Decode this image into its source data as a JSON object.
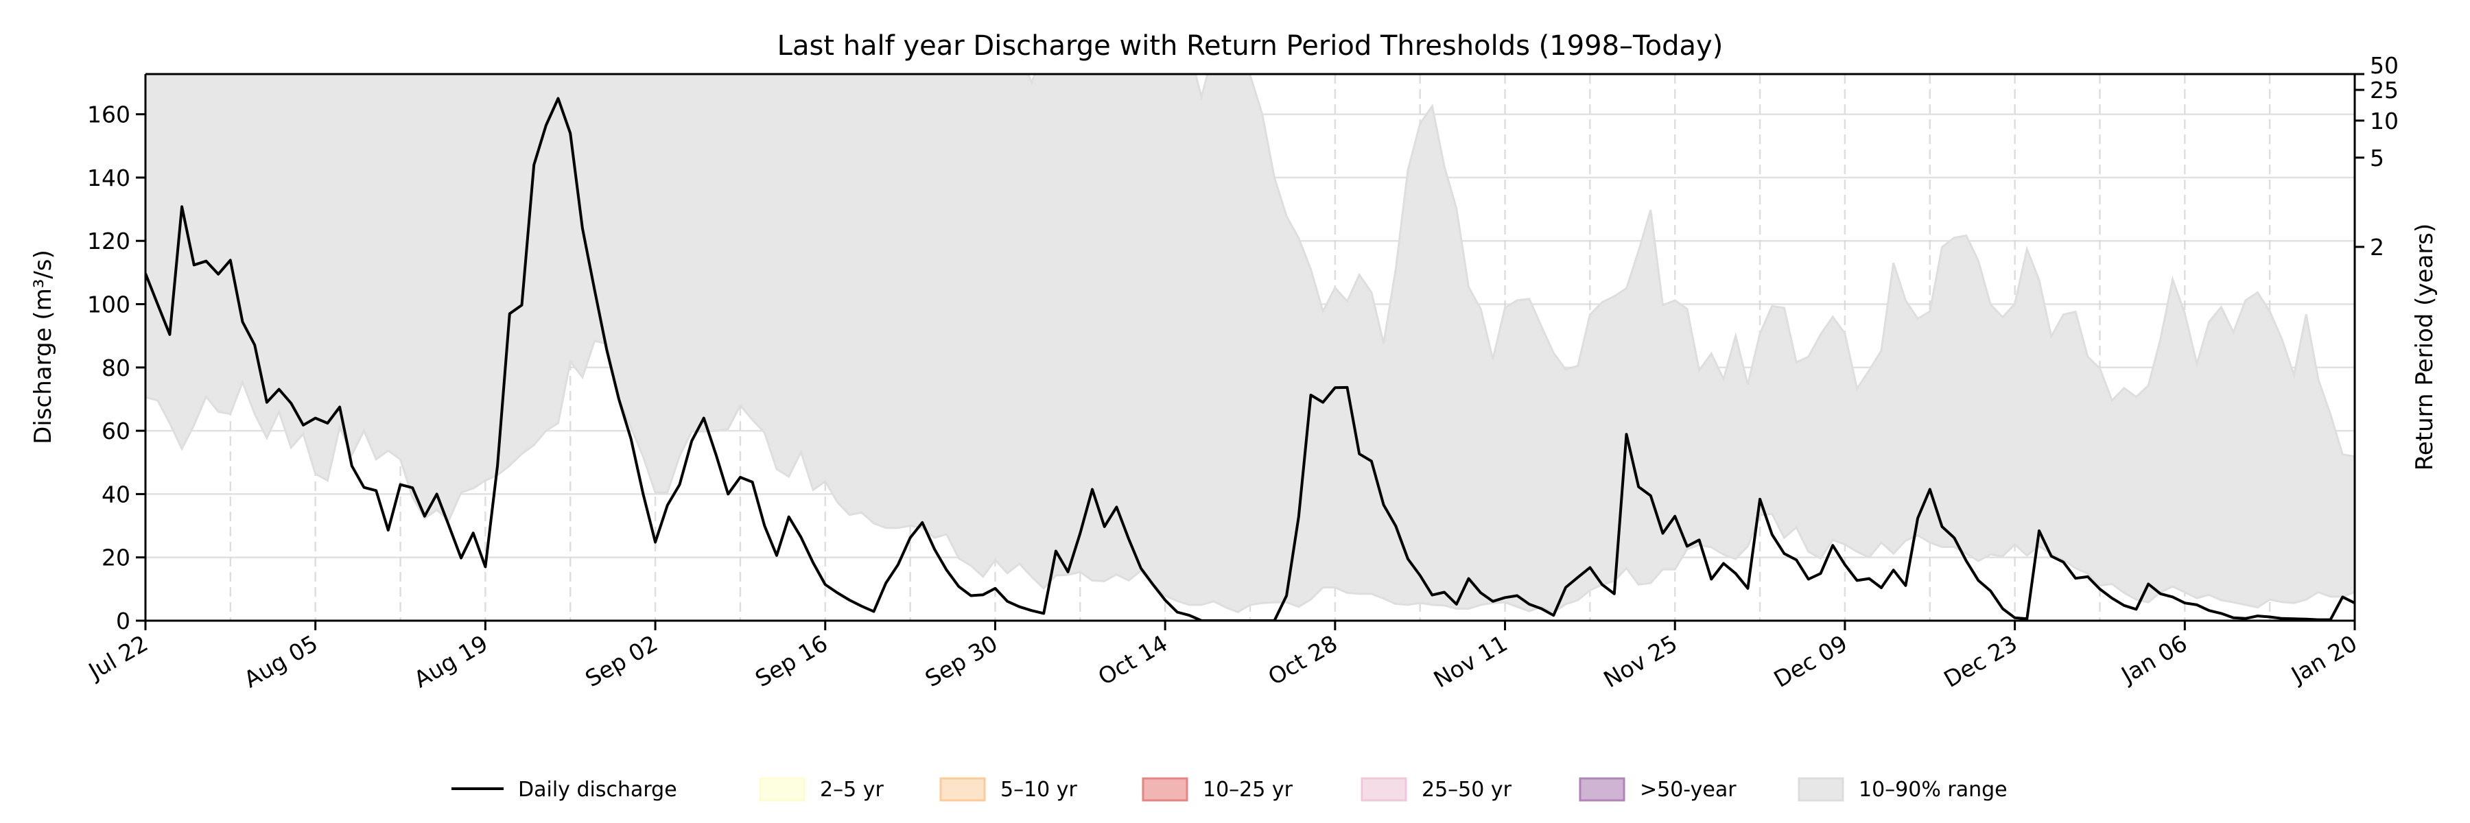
{
  "chart_data": {
    "type": "line",
    "title": "Last half year Discharge with Return Period Thresholds (1998–Today)",
    "ylabel": "Discharge (m³/s)",
    "ylabel_right": "Return Period (years)",
    "ylim": [
      0,
      172.7
    ],
    "y_ticks": [
      0,
      20,
      40,
      60,
      80,
      100,
      120,
      140,
      160
    ],
    "x_ticks": [
      "Jul 22",
      "Aug 05",
      "Aug 19",
      "Sep 02",
      "Sep 16",
      "Sep 30",
      "Oct 14",
      "Oct 28",
      "Nov 11",
      "Nov 25",
      "Dec 09",
      "Dec 23",
      "Jan 06",
      "Jan 20"
    ],
    "grid": {
      "horizontal": true,
      "vertical_weekly_dashed": true
    },
    "return_period_ticks": [
      {
        "label": "2",
        "discharge": 118.1
      },
      {
        "label": "5",
        "discharge": 146.3
      },
      {
        "label": "10",
        "discharge": 158.0
      },
      {
        "label": "25",
        "discharge": 167.7
      },
      {
        "label": "50",
        "discharge": 172.7
      }
    ],
    "x": [
      "Jul 22",
      "Jul 23",
      "Jul 24",
      "Jul 25",
      "Jul 26",
      "Jul 27",
      "Jul 28",
      "Jul 29",
      "Jul 30",
      "Jul 31",
      "Aug 01",
      "Aug 02",
      "Aug 03",
      "Aug 04",
      "Aug 05",
      "Aug 06",
      "Aug 07",
      "Aug 08",
      "Aug 09",
      "Aug 10",
      "Aug 11",
      "Aug 12",
      "Aug 13",
      "Aug 14",
      "Aug 15",
      "Aug 16",
      "Aug 17",
      "Aug 18",
      "Aug 19",
      "Aug 20",
      "Aug 21",
      "Aug 22",
      "Aug 23",
      "Aug 24",
      "Aug 25",
      "Aug 26",
      "Aug 27",
      "Aug 28",
      "Aug 29",
      "Aug 30",
      "Aug 31",
      "Sep 01",
      "Sep 02",
      "Sep 03",
      "Sep 04",
      "Sep 05",
      "Sep 06",
      "Sep 07",
      "Sep 08",
      "Sep 09",
      "Sep 10",
      "Sep 11",
      "Sep 12",
      "Sep 13",
      "Sep 14",
      "Sep 15",
      "Sep 16",
      "Sep 17",
      "Sep 18",
      "Sep 19",
      "Sep 20",
      "Sep 21",
      "Sep 22",
      "Sep 23",
      "Sep 24",
      "Sep 25",
      "Sep 26",
      "Sep 27",
      "Sep 28",
      "Sep 29",
      "Sep 30",
      "Oct 01",
      "Oct 02",
      "Oct 03",
      "Oct 04",
      "Oct 05",
      "Oct 06",
      "Oct 07",
      "Oct 08",
      "Oct 09",
      "Oct 10",
      "Oct 11",
      "Oct 12",
      "Oct 13",
      "Oct 14",
      "Oct 15",
      "Oct 16",
      "Oct 17",
      "Oct 18",
      "Oct 19",
      "Oct 20",
      "Oct 21",
      "Oct 22",
      "Oct 23",
      "Oct 24",
      "Oct 25",
      "Oct 26",
      "Oct 27",
      "Oct 28",
      "Oct 29",
      "Oct 30",
      "Oct 31",
      "Nov 01",
      "Nov 02",
      "Nov 03",
      "Nov 04",
      "Nov 05",
      "Nov 06",
      "Nov 07",
      "Nov 08",
      "Nov 09",
      "Nov 10",
      "Nov 11",
      "Nov 12",
      "Nov 13",
      "Nov 14",
      "Nov 15",
      "Nov 16",
      "Nov 17",
      "Nov 18",
      "Nov 19",
      "Nov 20",
      "Nov 21",
      "Nov 22",
      "Nov 23",
      "Nov 24",
      "Nov 25",
      "Nov 26",
      "Nov 27",
      "Nov 28",
      "Nov 29",
      "Nov 30",
      "Dec 01",
      "Dec 02",
      "Dec 03",
      "Dec 04",
      "Dec 05",
      "Dec 06",
      "Dec 07",
      "Dec 08",
      "Dec 09",
      "Dec 10",
      "Dec 11",
      "Dec 12",
      "Dec 13",
      "Dec 14",
      "Dec 15",
      "Dec 16",
      "Dec 17",
      "Dec 18",
      "Dec 19",
      "Dec 20",
      "Dec 21",
      "Dec 22",
      "Dec 23",
      "Dec 24",
      "Dec 25",
      "Dec 26",
      "Dec 27",
      "Dec 28",
      "Dec 29",
      "Dec 30",
      "Dec 31",
      "Jan 01",
      "Jan 02",
      "Jan 03",
      "Jan 04",
      "Jan 05",
      "Jan 06",
      "Jan 07",
      "Jan 08",
      "Jan 09",
      "Jan 10",
      "Jan 11",
      "Jan 12",
      "Jan 13",
      "Jan 14",
      "Jan 15",
      "Jan 16",
      "Jan 17",
      "Jan 18",
      "Jan 19",
      "Jan 20"
    ],
    "series": [
      {
        "name": "Daily discharge",
        "color": "#000000",
        "values": [
          109.7,
          100,
          90.4,
          130.8,
          112.4,
          113.6,
          109.5,
          113.9,
          94.4,
          87.1,
          69,
          73.1,
          68.7,
          61.8,
          64,
          62.4,
          67.5,
          48.9,
          42.1,
          41.1,
          28.6,
          43,
          42,
          33,
          40,
          30,
          19.8,
          27.7,
          17,
          49,
          97,
          99.7,
          144,
          156.5,
          165,
          154,
          124,
          104.5,
          85.6,
          70,
          57.4,
          40,
          24.8,
          36.5,
          43,
          56.8,
          64,
          52.5,
          40,
          45.3,
          43.8,
          30,
          20.6,
          32.8,
          26.4,
          18.3,
          11.4,
          8.8,
          6.5,
          4.6,
          2.9,
          11.9,
          17.7,
          26.2,
          31,
          22.6,
          16,
          10.8,
          7.9,
          8.2,
          10.2,
          6.1,
          4.4,
          3.2,
          2.3,
          22,
          15.4,
          27.6,
          41.5,
          29.7,
          35.9,
          25.8,
          16.6,
          11.4,
          6.5,
          2.7,
          1.7,
          0,
          0,
          0,
          0,
          0,
          0,
          0,
          7.9,
          32.8,
          71.3,
          69,
          73.6,
          73.7,
          52.7,
          50.4,
          36.6,
          29.9,
          19.5,
          14.3,
          8.1,
          9,
          5.2,
          13.3,
          8.8,
          6.1,
          7.3,
          7.9,
          5.2,
          3.8,
          1.7,
          10.5,
          13.7,
          16.8,
          11.4,
          8.5,
          58.9,
          42.3,
          39.5,
          27.6,
          33,
          23.5,
          25.5,
          13.1,
          18.1,
          14.9,
          10.2,
          38.4,
          27.2,
          21.2,
          19.2,
          13.1,
          14.9,
          23.8,
          17.7,
          12.7,
          13.3,
          10.4,
          16,
          11.1,
          32.4,
          41.5,
          29.7,
          26.2,
          18.9,
          12.7,
          9.4,
          3.8,
          0.9,
          0.6,
          28.4,
          20.4,
          18.5,
          13.4,
          13.9,
          10,
          7.1,
          4.8,
          3.6,
          11.6,
          8.5,
          7.5,
          5.6,
          5,
          3.2,
          2.3,
          0.9,
          0.7,
          1.5,
          1.2,
          0.7,
          0.6,
          0.5,
          0.3,
          0.3,
          7.5,
          5.6
        ]
      }
    ],
    "range_band": {
      "name": "10–90% range",
      "color": "#e7e7e7",
      "lower": [
        70.6,
        69.6,
        62.4,
        54.3,
        61.8,
        70.8,
        66,
        65.3,
        75.4,
        65.3,
        57.7,
        66,
        54.7,
        59,
        46.4,
        44.3,
        61.2,
        52.4,
        60,
        51,
        53.7,
        51,
        39,
        32.4,
        35,
        31.7,
        40.5,
        41.8,
        44.3,
        46,
        49,
        52.7,
        55.5,
        60,
        62.4,
        81.9,
        76.9,
        88.4,
        87.5,
        70,
        61,
        51.8,
        40.5,
        40.5,
        52,
        59.8,
        59.8,
        60,
        60.6,
        68,
        63.5,
        59.4,
        47.9,
        45.5,
        53.3,
        41.3,
        44,
        37.4,
        33.4,
        34.2,
        30.8,
        29.3,
        29.3,
        30,
        29.3,
        26.2,
        27.3,
        19.7,
        17.4,
        13.9,
        19.2,
        15,
        18,
        13.9,
        10.2,
        14.3,
        14.5,
        15.4,
        12.7,
        12.5,
        14.6,
        12.7,
        15.8,
        11.4,
        7.9,
        6.2,
        5,
        5,
        6.1,
        4.2,
        2.7,
        5,
        5.6,
        5.8,
        5.8,
        4.4,
        6.7,
        10.5,
        10.5,
        8.8,
        8.5,
        8.5,
        7,
        5.3,
        5,
        5.6,
        5,
        4.8,
        3.8,
        3.8,
        5,
        5.6,
        5.8,
        4.4,
        3,
        4.4,
        2.7,
        5.2,
        6.5,
        9.6,
        11.4,
        12.5,
        16.6,
        11.4,
        11.9,
        16.2,
        16.2,
        22.6,
        23.9,
        23.2,
        20.9,
        19.5,
        23.5,
        33.4,
        33.7,
        26.2,
        29.5,
        21.8,
        19.7,
        25.5,
        24.1,
        21.8,
        20,
        24.7,
        21.2,
        25.3,
        27,
        24.7,
        23.3,
        23.3,
        21.2,
        18.9,
        20.9,
        20.4,
        24.1,
        20.6,
        23.5,
        21.2,
        19.2,
        16.6,
        14.9,
        11.1,
        11.6,
        8.8,
        6.7,
        5.8,
        9,
        10.8,
        9,
        7.1,
        8.2,
        6.5,
        5.8,
        5,
        4.2,
        6.7,
        5.9,
        5.6,
        6.7,
        9,
        7.6,
        7.6,
        9
      ],
      "upper": [
        180,
        180,
        180,
        180,
        180,
        180,
        180,
        180,
        180,
        180,
        180,
        180,
        180,
        180,
        180,
        180,
        180,
        180,
        180,
        180,
        180,
        180,
        180,
        180,
        180,
        180,
        180,
        180,
        180,
        180,
        180,
        180,
        180,
        180,
        180,
        180,
        180,
        180,
        180,
        180,
        180,
        180,
        180,
        180,
        180,
        180,
        180,
        180,
        180,
        180,
        180,
        180,
        180,
        180,
        180,
        180,
        180,
        180,
        180,
        180,
        180,
        180,
        180,
        180,
        180,
        180,
        180,
        180,
        180,
        180,
        180,
        180,
        180,
        170,
        180,
        180,
        180,
        180,
        180,
        180,
        180,
        180,
        180,
        180,
        180,
        180,
        180,
        165.5,
        180,
        180,
        180,
        172.4,
        160,
        140,
        127.8,
        120.9,
        111,
        97.7,
        105.2,
        100.9,
        109.3,
        103.7,
        87.6,
        111,
        142.3,
        157,
        162.6,
        143.5,
        130.2,
        105.4,
        98.5,
        82.6,
        98.8,
        101.2,
        101.7,
        93,
        84.6,
        79.4,
        80.5,
        96.7,
        100.6,
        102.5,
        105,
        116.8,
        129.8,
        99.7,
        101.2,
        98.5,
        79.1,
        84.4,
        76.3,
        90,
        74.6,
        90.7,
        99.4,
        98.8,
        81.6,
        83.4,
        90.4,
        96,
        90.7,
        73.3,
        79.1,
        85.3,
        113,
        101.2,
        95.4,
        97.7,
        118,
        121,
        121.7,
        113.6,
        99.9,
        95.9,
        100.1,
        117.4,
        107.6,
        89.8,
        96.7,
        97.6,
        83.4,
        79.7,
        69.6,
        73.5,
        70.7,
        74.3,
        89,
        107.8,
        97.1,
        81.1,
        94.4,
        99.1,
        91.1,
        101.2,
        103.7,
        97.7,
        89,
        77.6,
        96.8,
        76.2,
        65.2,
        52.5,
        51.9
      ]
    },
    "legend": {
      "placement": "bottom-center",
      "items": [
        {
          "label": "Daily discharge",
          "kind": "line",
          "color": "#000000"
        },
        {
          "label": "2–5 yr",
          "kind": "patch",
          "color": "#fefee3",
          "edge": "#fdfdd0"
        },
        {
          "label": "5–10 yr",
          "kind": "patch",
          "color": "#fde3c8",
          "edge": "#fdcb9a"
        },
        {
          "label": "10–25 yr",
          "kind": "patch",
          "color": "#f1b5b4",
          "edge": "#e48583"
        },
        {
          "label": "25–50 yr",
          "kind": "patch",
          "color": "#f5dde8",
          "edge": "#f1c6da"
        },
        {
          "label": ">50-year",
          "kind": "patch",
          "color": "#d0b4d4",
          "edge": "#b283b8"
        },
        {
          "label": "10–90% range",
          "kind": "patch",
          "color": "#e7e7e7",
          "edge": "#dcdcdc"
        }
      ]
    }
  }
}
